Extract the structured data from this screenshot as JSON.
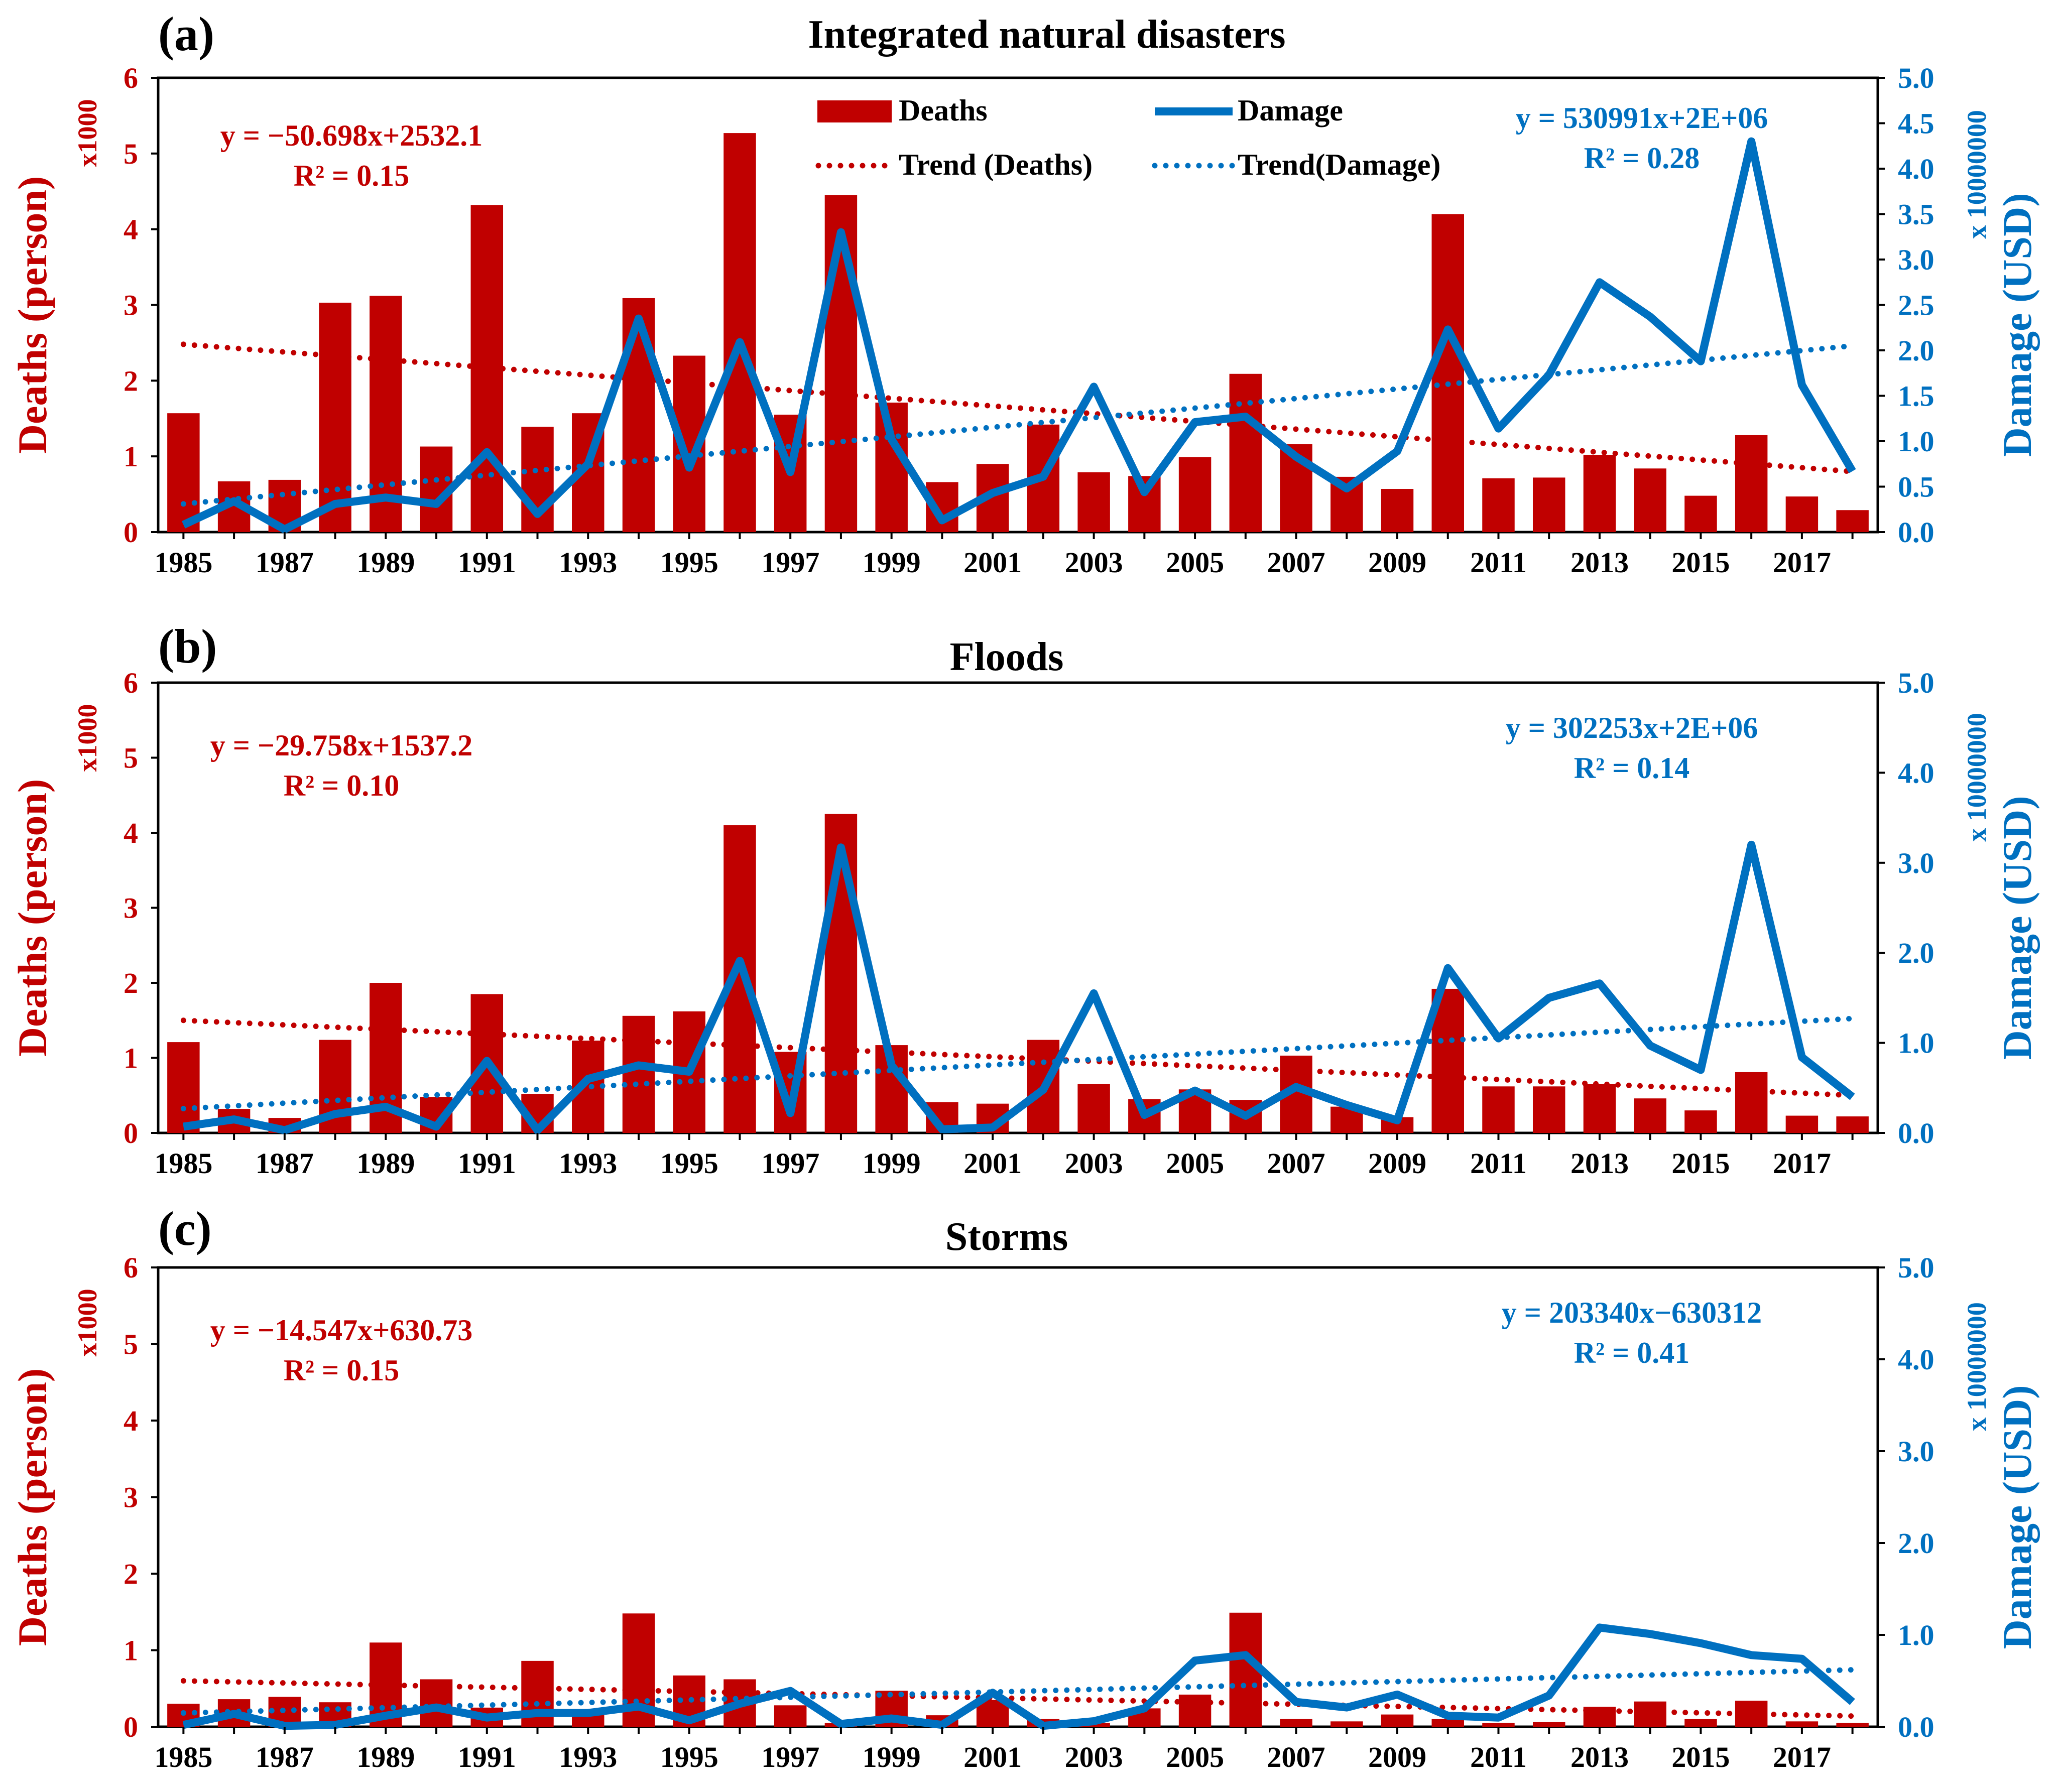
{
  "chart_data": [
    {
      "panel_label": "(a)",
      "title": "Integrated natural disasters",
      "type": "bar+line",
      "x": [
        1985,
        1986,
        1987,
        1988,
        1989,
        1990,
        1991,
        1992,
        1993,
        1994,
        1995,
        1996,
        1997,
        1998,
        1999,
        2000,
        2001,
        2002,
        2003,
        2004,
        2005,
        2006,
        2007,
        2008,
        2009,
        2010,
        2011,
        2012,
        2013,
        2014,
        2015,
        2016,
        2017,
        2018
      ],
      "x_tick_labels": [
        "1985",
        "1987",
        "1989",
        "1991",
        "1993",
        "1995",
        "1997",
        "1999",
        "2001",
        "2003",
        "2005",
        "2007",
        "2009",
        "2011",
        "2013",
        "2015",
        "2017"
      ],
      "deaths": [
        1.57,
        0.67,
        0.69,
        3.03,
        3.12,
        1.13,
        4.32,
        1.39,
        1.57,
        3.09,
        2.33,
        5.27,
        1.55,
        4.45,
        1.71,
        0.66,
        0.9,
        1.42,
        0.79,
        0.74,
        0.99,
        2.09,
        1.16,
        0.73,
        0.57,
        4.2,
        0.71,
        0.72,
        1.02,
        0.84,
        0.48,
        1.28,
        0.47,
        0.29
      ],
      "damage": [
        0.08,
        0.34,
        0.03,
        0.31,
        0.38,
        0.31,
        0.88,
        0.2,
        0.75,
        2.35,
        0.71,
        2.09,
        0.66,
        3.3,
        1.02,
        0.13,
        0.43,
        0.61,
        1.6,
        0.44,
        1.21,
        1.27,
        0.83,
        0.48,
        0.89,
        2.23,
        1.14,
        1.73,
        2.75,
        2.37,
        1.88,
        4.3,
        1.62,
        0.67
      ],
      "deaths_trend": {
        "slope": -50.698,
        "intercept": 2532.1,
        "start": 2.48,
        "end": 0.8
      },
      "damage_trend": {
        "start": 0.31,
        "end": 2.05
      },
      "y_left_ticks": [
        "0",
        "1",
        "2",
        "3",
        "4",
        "5",
        "6"
      ],
      "y_right_ticks": [
        "0.0",
        "0.5",
        "1.0",
        "1.5",
        "2.0",
        "2.5",
        "3.0",
        "3.5",
        "4.0",
        "4.5",
        "5.0"
      ],
      "ylim_left": [
        0,
        6
      ],
      "ylim_right": [
        0,
        5
      ],
      "eq_deaths": "y = −50.698x+2532.1",
      "r2_deaths": "R² = 0.15",
      "eq_damage": "y = 530991x+2E+06",
      "r2_damage": "R² = 0.28",
      "legend": {
        "deaths": "Deaths",
        "damage": "Damage",
        "trend_deaths": "Trend (Deaths)",
        "trend_damage": "Trend(Damage)"
      },
      "ylabel_left": "Deaths (person)",
      "ylabel_left_multiplier": "x1000",
      "ylabel_right": "Damage (USD)",
      "ylabel_right_multiplier": "x 10000000"
    },
    {
      "panel_label": "(b)",
      "title": "Floods",
      "type": "bar+line",
      "x": [
        1985,
        1986,
        1987,
        1988,
        1989,
        1990,
        1991,
        1992,
        1993,
        1994,
        1995,
        1996,
        1997,
        1998,
        1999,
        2000,
        2001,
        2002,
        2003,
        2004,
        2005,
        2006,
        2007,
        2008,
        2009,
        2010,
        2011,
        2012,
        2013,
        2014,
        2015,
        2016,
        2017,
        2018
      ],
      "x_tick_labels": [
        "1985",
        "1987",
        "1989",
        "1991",
        "1993",
        "1995",
        "1997",
        "1999",
        "2001",
        "2003",
        "2005",
        "2007",
        "2009",
        "2011",
        "2013",
        "2015",
        "2017"
      ],
      "deaths": [
        1.21,
        0.32,
        0.2,
        1.24,
        2.0,
        0.48,
        1.85,
        0.52,
        1.23,
        1.56,
        1.62,
        4.1,
        1.08,
        4.25,
        1.17,
        0.41,
        0.39,
        1.24,
        0.65,
        0.45,
        0.58,
        0.44,
        1.03,
        0.35,
        0.21,
        1.92,
        0.62,
        0.62,
        0.65,
        0.46,
        0.3,
        0.81,
        0.23,
        0.22
      ],
      "damage": [
        0.07,
        0.15,
        0.03,
        0.21,
        0.29,
        0.07,
        0.8,
        0.03,
        0.6,
        0.75,
        0.68,
        1.91,
        0.22,
        3.17,
        0.75,
        0.04,
        0.06,
        0.48,
        1.55,
        0.2,
        0.47,
        0.19,
        0.51,
        0.31,
        0.14,
        1.83,
        1.05,
        1.5,
        1.66,
        0.97,
        0.7,
        3.2,
        0.84,
        0.4
      ],
      "deaths_trend": {
        "slope": -29.758,
        "intercept": 1537.2,
        "start": 1.5,
        "end": 0.5
      },
      "damage_trend": {
        "start": 0.27,
        "end": 1.27
      },
      "y_left_ticks": [
        "0",
        "1",
        "2",
        "3",
        "4",
        "5",
        "6"
      ],
      "y_right_ticks": [
        "0.0",
        "1.0",
        "2.0",
        "3.0",
        "4.0",
        "5.0"
      ],
      "ylim_left": [
        0,
        6
      ],
      "ylim_right": [
        0,
        5
      ],
      "eq_deaths": "y = −29.758x+1537.2",
      "r2_deaths": "R² = 0.10",
      "eq_damage": "y = 302253x+2E+06",
      "r2_damage": "R² = 0.14",
      "ylabel_left": "Deaths (person)",
      "ylabel_left_multiplier": "x1000",
      "ylabel_right": "Damage (USD)",
      "ylabel_right_multiplier": "x 10000000"
    },
    {
      "panel_label": "(c)",
      "title": "Storms",
      "type": "bar+line",
      "x": [
        1985,
        1986,
        1987,
        1988,
        1989,
        1990,
        1991,
        1992,
        1993,
        1994,
        1995,
        1996,
        1997,
        1998,
        1999,
        2000,
        2001,
        2002,
        2003,
        2004,
        2005,
        2006,
        2007,
        2008,
        2009,
        2010,
        2011,
        2012,
        2013,
        2014,
        2015,
        2016,
        2017,
        2018
      ],
      "x_tick_labels": [
        "1985",
        "1987",
        "1989",
        "1991",
        "1993",
        "1995",
        "1997",
        "1999",
        "2001",
        "2003",
        "2005",
        "2007",
        "2009",
        "2011",
        "2013",
        "2015",
        "2017"
      ],
      "deaths": [
        0.3,
        0.36,
        0.39,
        0.32,
        1.1,
        0.62,
        0.25,
        0.86,
        0.2,
        1.48,
        0.67,
        0.62,
        0.28,
        0.05,
        0.47,
        0.15,
        0.35,
        0.1,
        0.05,
        0.24,
        0.42,
        1.49,
        0.1,
        0.07,
        0.16,
        0.1,
        0.05,
        0.06,
        0.26,
        0.33,
        0.1,
        0.34,
        0.07,
        0.05
      ],
      "damage": [
        0.02,
        0.14,
        0.01,
        0.02,
        0.12,
        0.21,
        0.1,
        0.15,
        0.15,
        0.22,
        0.07,
        0.25,
        0.39,
        0.03,
        0.09,
        0.02,
        0.37,
        0.01,
        0.06,
        0.2,
        0.72,
        0.78,
        0.27,
        0.21,
        0.35,
        0.12,
        0.1,
        0.34,
        1.08,
        1.01,
        0.91,
        0.78,
        0.74,
        0.27
      ],
      "deaths_trend": {
        "slope": -14.547,
        "intercept": 630.73,
        "start": 0.6,
        "end": 0.14
      },
      "damage_trend": {
        "start": 0.15,
        "end": 0.62
      },
      "y_left_ticks": [
        "0",
        "1",
        "2",
        "3",
        "4",
        "5",
        "6"
      ],
      "y_right_ticks": [
        "0.0",
        "1.0",
        "2.0",
        "3.0",
        "4.0",
        "5.0"
      ],
      "ylim_left": [
        0,
        6
      ],
      "ylim_right": [
        0,
        5
      ],
      "eq_deaths": "y = −14.547x+630.73",
      "r2_deaths": "R² = 0.15",
      "eq_damage": "y = 203340x−630312",
      "r2_damage": "R² = 0.41",
      "ylabel_left": "Deaths (person)",
      "ylabel_left_multiplier": "x1000",
      "ylabel_right": "Damage (USD)",
      "ylabel_right_multiplier": "x 10000000"
    }
  ],
  "colors": {
    "deaths": "#C00000",
    "damage": "#0070C0",
    "axis": "#000000"
  }
}
